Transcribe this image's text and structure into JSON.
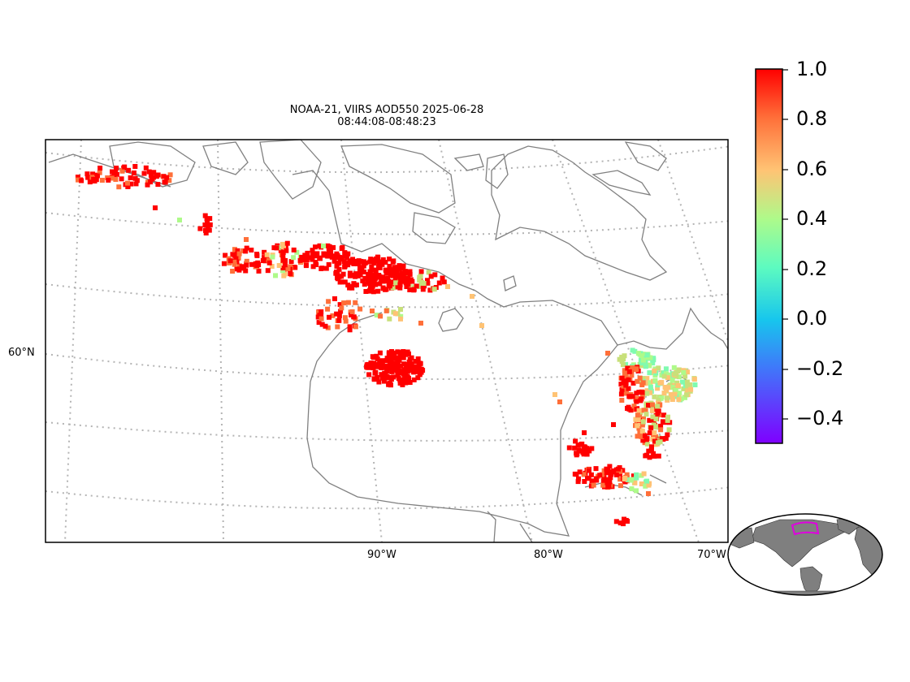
{
  "figure": {
    "title_line1": "NOAA-21, VIIRS AOD550 2025-06-28",
    "title_line2": "08:44:08-08:48:23",
    "lat_labels": [
      "60°N"
    ],
    "lon_labels": [
      "90°W",
      "80°W",
      "70°W"
    ]
  },
  "colorbar": {
    "variable": "AOD550",
    "colormap": "rainbow",
    "range": [
      -0.5,
      1.0
    ],
    "ticks": [
      "1.0",
      "0.8",
      "0.6",
      "0.4",
      "0.2",
      "0.0",
      "−0.2",
      "−0.4"
    ],
    "colors": [
      "#ff0000",
      "#ff6f39",
      "#ffc374",
      "#aefa8a",
      "#5dfbc0",
      "#17c6ed",
      "#4077fa",
      "#7f00ff"
    ]
  },
  "colors": {
    "coastline": "#808080",
    "gridlines": "#b4b4b4",
    "inset_land": "#7f7f7f",
    "inset_region_box": "#e000e0"
  }
}
